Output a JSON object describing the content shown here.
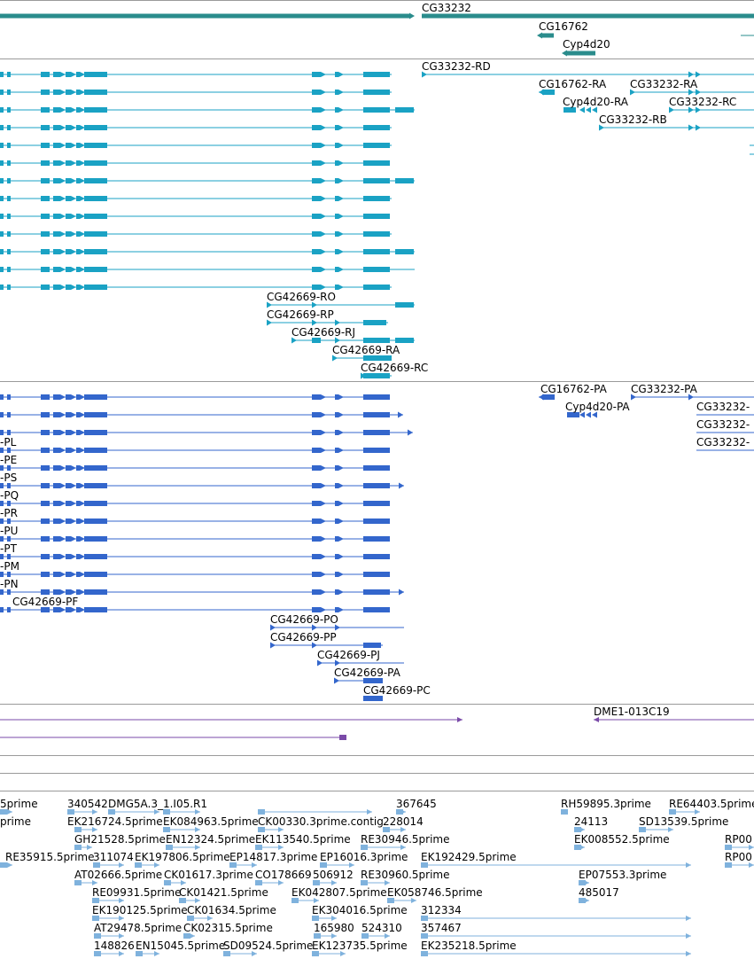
{
  "colors": {
    "gene": "#2a8c8c",
    "transcript_teal": "#1aa2c4",
    "transcript_blue": "#3366cc",
    "clone": "#7a4aa8",
    "est": "#7fb2dd",
    "separator": "#9a9a9a"
  },
  "gene_labels": [
    "CG33232",
    "CG16762",
    "Cyp4d20"
  ],
  "transcript_labels_teal": [
    "CG33232-RD",
    "CG16762-RA",
    "CG33232-RA",
    "Cyp4d20-RA",
    "CG33232-RC",
    "CG33232-RB",
    "CG42669-RO",
    "CG42669-RP",
    "CG42669-RJ",
    "CG42669-RA",
    "CG42669-RC"
  ],
  "transcript_labels_blue": [
    "CG16762-PA",
    "CG33232-PA",
    "Cyp4d20-PA",
    "CG33232-",
    "CG33232-",
    "CG33232-",
    "-PL",
    "-PE",
    "-PS",
    "-PQ",
    "-PR",
    "-PU",
    "-PT",
    "-PM",
    "-PN",
    "CG42669-PF",
    "CG42669-PO",
    "CG42669-PP",
    "CG42669-PJ",
    "CG42669-PA",
    "CG42669-PC"
  ],
  "clone_labels": [
    "DME1-013C19"
  ],
  "est_labels": [
    "5prime",
    "340542",
    "DMG5A.3_1.I05.R1",
    "367645",
    "RH59895.3prime",
    "RE64403.5prime",
    "prime",
    "EK216724.5prime",
    "EK084963.5prime",
    "CK00330.3prime.contig",
    "228014",
    "24113",
    "SD13539.5prime",
    "GH21528.5prime",
    "EN12324.5prime",
    "EK113540.5prime",
    "RE30946.5prime",
    "EK008552.5prime",
    "RP00",
    "RE35915.5prime",
    "311074",
    "EK197806.5prime",
    "EP14817.3prime",
    "EP16016.3prime",
    "EK192429.5prime",
    "RP00",
    "AT02666.5prime",
    "CK01617.3prime",
    "CO178669",
    "506912",
    "RE30960.5prime",
    "EP07553.3prime",
    "RE09931.5prime",
    "CK01421.5prime",
    "EK042807.5prime",
    "EK058746.5prime",
    "485017",
    "EK190125.5prime",
    "CK01634.5prime",
    "EK304016.5prime",
    "312334",
    "AT29478.5prime",
    "CK02315.5prime",
    "165980",
    "524310",
    "357467",
    "148826",
    "EN15045.5prime",
    "SD09524.5prime",
    "EK123735.5prime",
    "EK235218.5prime"
  ]
}
